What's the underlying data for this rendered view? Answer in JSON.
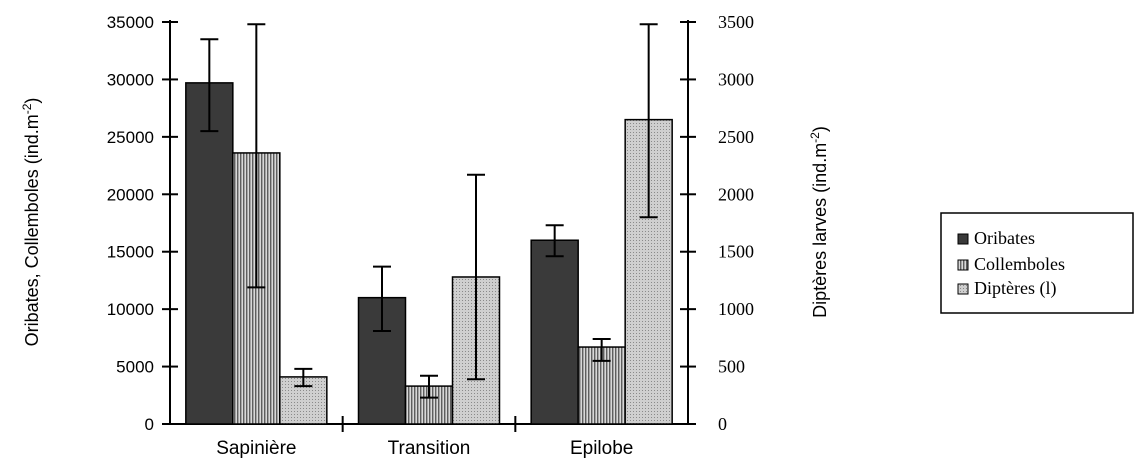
{
  "chart_data": {
    "type": "bar",
    "categories": [
      "Sapinière",
      "Transition",
      "Epilobe"
    ],
    "y_left": {
      "label_main": "Oribates, Collemboles (ind.m",
      "label_sup": "-2",
      "label_end": ")",
      "ylim": [
        0,
        35000
      ],
      "ticks": [
        0,
        5000,
        10000,
        15000,
        20000,
        25000,
        30000,
        35000
      ]
    },
    "y_right": {
      "label_main": "Diptères larves  (ind.m",
      "label_sup": "-2",
      "label_end": ")",
      "ylim": [
        0,
        3500
      ],
      "ticks": [
        0,
        500,
        1000,
        1500,
        2000,
        2500,
        3000,
        3500
      ]
    },
    "series": [
      {
        "name": "Oribates",
        "axis": "left",
        "color": "#3a3a3a",
        "pattern": "solid",
        "values": [
          29700,
          11000,
          16000
        ],
        "err_high": [
          33500,
          13700,
          17300
        ],
        "err_low": [
          25500,
          8100,
          14600
        ]
      },
      {
        "name": "Collemboles",
        "axis": "left",
        "color": "#9a9a9a",
        "pattern": "vstripe",
        "values": [
          23600,
          3300,
          6700
        ],
        "err_high": [
          34800,
          4200,
          7400
        ],
        "err_low": [
          11900,
          2300,
          5500
        ]
      },
      {
        "name": "Diptères (l)",
        "axis": "right",
        "color": "#c8c8c8",
        "pattern": "dots",
        "values": [
          410,
          1280,
          2650
        ],
        "err_high": [
          480,
          2170,
          3480
        ],
        "err_low": [
          330,
          390,
          1800
        ]
      }
    ],
    "legend_position": "right",
    "grid": false
  }
}
